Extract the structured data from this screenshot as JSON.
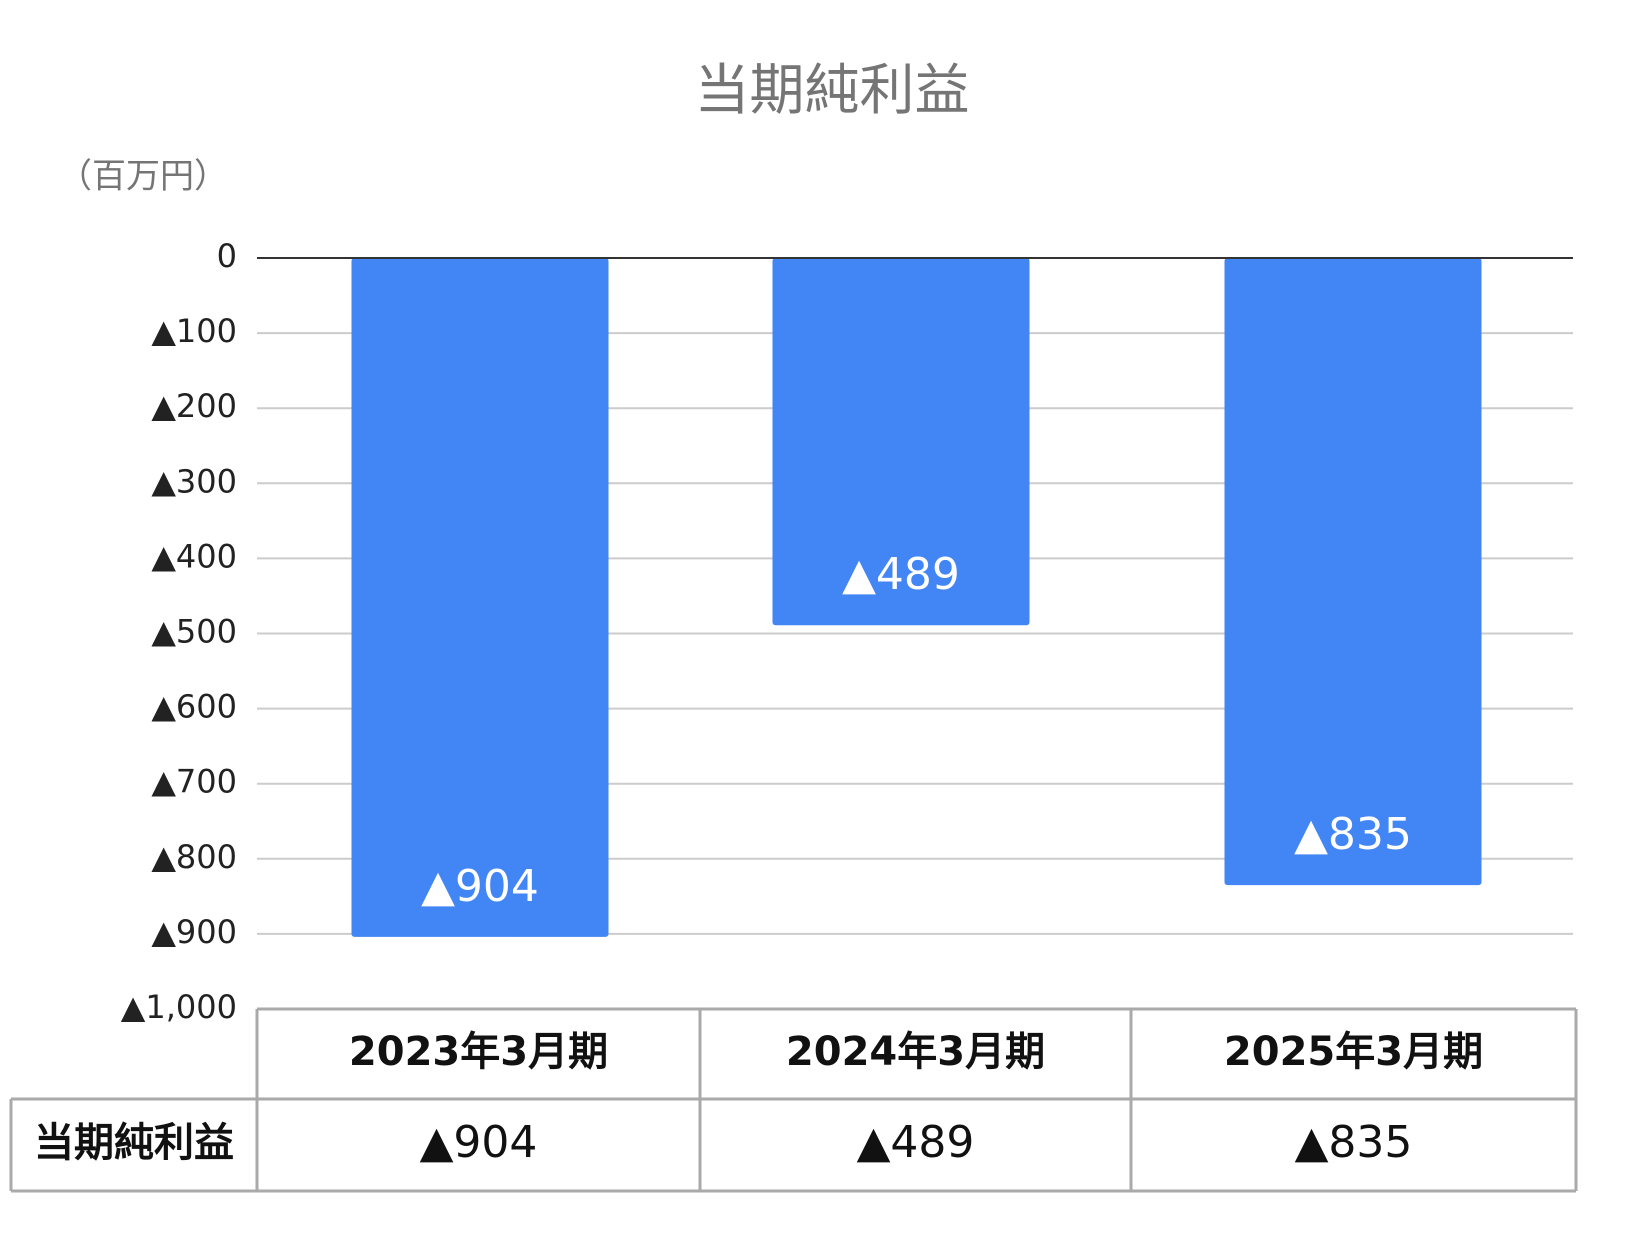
{
  "chart_data": {
    "type": "bar",
    "title": "当期純利益",
    "ylabel": "（百万円）",
    "categories": [
      "2023年3月期",
      "2024年3月期",
      "2025年3月期"
    ],
    "series": [
      {
        "name": "当期純利益",
        "color": "#4285f4",
        "values": [
          -904,
          -489,
          -835
        ],
        "value_labels": [
          "▲904",
          "▲489",
          "▲835"
        ]
      }
    ],
    "ylim": [
      -1000,
      0
    ],
    "yticks": [
      {
        "value": 0,
        "label": "0"
      },
      {
        "value": -100,
        "label": "▲100"
      },
      {
        "value": -200,
        "label": "▲200"
      },
      {
        "value": -300,
        "label": "▲300"
      },
      {
        "value": -400,
        "label": "▲400"
      },
      {
        "value": -500,
        "label": "▲500"
      },
      {
        "value": -600,
        "label": "▲600"
      },
      {
        "value": -700,
        "label": "▲700"
      },
      {
        "value": -800,
        "label": "▲800"
      },
      {
        "value": -900,
        "label": "▲900"
      },
      {
        "value": -1000,
        "label": "▲1,000"
      }
    ],
    "grid": true
  }
}
